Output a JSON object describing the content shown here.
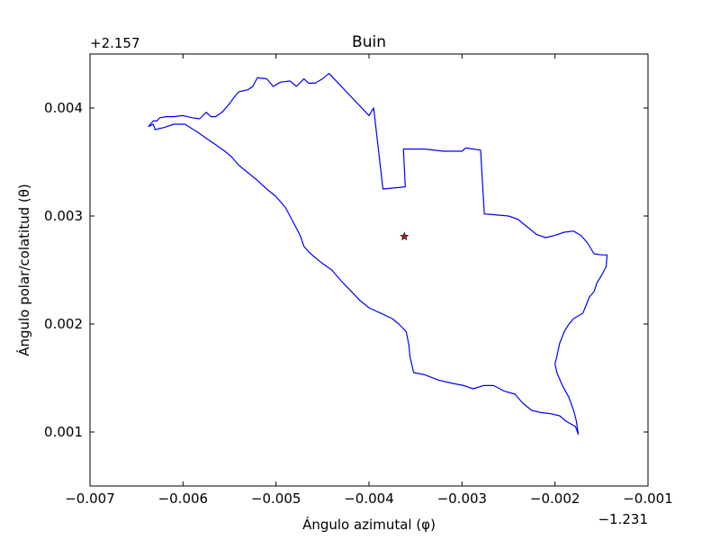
{
  "chart_data": {
    "type": "line",
    "title": "Buin",
    "xlabel": "Ángulo azimutal (φ)",
    "ylabel": "Ángulo polar/colatitud (θ)",
    "x_offset_label": "−1.231",
    "y_offset_label": "+2.157",
    "xlim": [
      -0.007,
      -0.001
    ],
    "ylim": [
      0.0045,
      0.0005
    ],
    "y_inverted": true,
    "xticks": [
      -0.007,
      -0.006,
      -0.005,
      -0.004,
      -0.003,
      -0.002,
      -0.001
    ],
    "xtick_labels": [
      "−0.007",
      "−0.006",
      "−0.005",
      "−0.004",
      "−0.003",
      "−0.002",
      "−0.001"
    ],
    "yticks": [
      0.001,
      0.002,
      0.003,
      0.004
    ],
    "ytick_labels": [
      "0.001",
      "0.002",
      "0.003",
      "0.004"
    ],
    "grid": false,
    "series": [
      {
        "color": "#0000ff",
        "closed": true,
        "points": [
          [
            -0.00175,
            0.00098
          ],
          [
            -0.00178,
            0.00105
          ],
          [
            -0.00188,
            0.0011
          ],
          [
            -0.00195,
            0.00115
          ],
          [
            -0.00205,
            0.00117
          ],
          [
            -0.00215,
            0.00118
          ],
          [
            -0.00225,
            0.0012
          ],
          [
            -0.00235,
            0.00127
          ],
          [
            -0.00243,
            0.00135
          ],
          [
            -0.00255,
            0.00138
          ],
          [
            -0.00266,
            0.00143
          ],
          [
            -0.00277,
            0.00143
          ],
          [
            -0.00288,
            0.0014
          ],
          [
            -0.00298,
            0.00143
          ],
          [
            -0.0031,
            0.00145
          ],
          [
            -0.00325,
            0.00148
          ],
          [
            -0.0034,
            0.00153
          ],
          [
            -0.00352,
            0.00155
          ],
          [
            -0.00356,
            0.0017
          ],
          [
            -0.00357,
            0.0018
          ],
          [
            -0.0036,
            0.00193
          ],
          [
            -0.00368,
            0.002
          ],
          [
            -0.00375,
            0.00205
          ],
          [
            -0.00385,
            0.00209
          ],
          [
            -0.004,
            0.00215
          ],
          [
            -0.0041,
            0.00222
          ],
          [
            -0.0042,
            0.00231
          ],
          [
            -0.0043,
            0.0024
          ],
          [
            -0.0044,
            0.0025
          ],
          [
            -0.0045,
            0.00256
          ],
          [
            -0.0046,
            0.00263
          ],
          [
            -0.00465,
            0.00267
          ],
          [
            -0.0047,
            0.00272
          ],
          [
            -0.00474,
            0.00282
          ],
          [
            -0.00477,
            0.00287
          ],
          [
            -0.0048,
            0.00292
          ],
          [
            -0.00485,
            0.003
          ],
          [
            -0.0049,
            0.00308
          ],
          [
            -0.005,
            0.00318
          ],
          [
            -0.0051,
            0.00325
          ],
          [
            -0.0052,
            0.00333
          ],
          [
            -0.0053,
            0.0034
          ],
          [
            -0.0054,
            0.00347
          ],
          [
            -0.00548,
            0.00355
          ],
          [
            -0.00555,
            0.0036
          ],
          [
            -0.00565,
            0.00366
          ],
          [
            -0.00575,
            0.00372
          ],
          [
            -0.00585,
            0.00378
          ],
          [
            -0.00598,
            0.00385
          ],
          [
            -0.0061,
            0.00385
          ],
          [
            -0.0062,
            0.00382
          ],
          [
            -0.0063,
            0.0038
          ],
          [
            -0.00632,
            0.00385
          ],
          [
            -0.00637,
            0.00383
          ],
          [
            -0.00632,
            0.00388
          ],
          [
            -0.00628,
            0.00388
          ],
          [
            -0.00625,
            0.00391
          ],
          [
            -0.00618,
            0.00392
          ],
          [
            -0.0061,
            0.00392
          ],
          [
            -0.006,
            0.00393
          ],
          [
            -0.0059,
            0.00391
          ],
          [
            -0.00582,
            0.0039
          ],
          [
            -0.00575,
            0.00396
          ],
          [
            -0.0057,
            0.00392
          ],
          [
            -0.00565,
            0.00392
          ],
          [
            -0.00558,
            0.00396
          ],
          [
            -0.0055,
            0.00404
          ],
          [
            -0.00545,
            0.0041
          ],
          [
            -0.0054,
            0.00415
          ],
          [
            -0.0053,
            0.00417
          ],
          [
            -0.00525,
            0.0042
          ],
          [
            -0.0052,
            0.00428
          ],
          [
            -0.0051,
            0.00427
          ],
          [
            -0.00503,
            0.0042
          ],
          [
            -0.00495,
            0.00424
          ],
          [
            -0.00485,
            0.00425
          ],
          [
            -0.00478,
            0.0042
          ],
          [
            -0.0047,
            0.00427
          ],
          [
            -0.00465,
            0.00423
          ],
          [
            -0.00458,
            0.00423
          ],
          [
            -0.0045,
            0.00427
          ],
          [
            -0.00443,
            0.00432
          ],
          [
            -0.004,
            0.00393
          ],
          [
            -0.00395,
            0.004
          ],
          [
            -0.00385,
            0.00325
          ],
          [
            -0.00361,
            0.00327
          ],
          [
            -0.00363,
            0.00362
          ],
          [
            -0.00355,
            0.00362
          ],
          [
            -0.0034,
            0.00362
          ],
          [
            -0.0032,
            0.0036
          ],
          [
            -0.003,
            0.0036
          ],
          [
            -0.00296,
            0.00363
          ],
          [
            -0.0028,
            0.00361
          ],
          [
            -0.00276,
            0.00302
          ],
          [
            -0.0025,
            0.003
          ],
          [
            -0.0024,
            0.00297
          ],
          [
            -0.0023,
            0.0029
          ],
          [
            -0.0022,
            0.00283
          ],
          [
            -0.0021,
            0.0028
          ],
          [
            -0.002,
            0.00282
          ],
          [
            -0.0019,
            0.00285
          ],
          [
            -0.0018,
            0.00286
          ],
          [
            -0.00172,
            0.00282
          ],
          [
            -0.00165,
            0.00275
          ],
          [
            -0.00158,
            0.00265
          ],
          [
            -0.0015,
            0.00264
          ],
          [
            -0.00144,
            0.00264
          ],
          [
            -0.00145,
            0.00253
          ],
          [
            -0.0015,
            0.00245
          ],
          [
            -0.00155,
            0.00238
          ],
          [
            -0.00158,
            0.0023
          ],
          [
            -0.00163,
            0.00225
          ],
          [
            -0.0017,
            0.0021
          ],
          [
            -0.0018,
            0.00205
          ],
          [
            -0.00185,
            0.002
          ],
          [
            -0.0019,
            0.00193
          ],
          [
            -0.00195,
            0.00182
          ],
          [
            -0.00198,
            0.0017
          ],
          [
            -0.002,
            0.00163
          ],
          [
            -0.00198,
            0.00155
          ],
          [
            -0.00192,
            0.00143
          ],
          [
            -0.00185,
            0.00132
          ],
          [
            -0.0018,
            0.0012
          ],
          [
            -0.00177,
            0.0011
          ],
          [
            -0.00175,
            0.00098
          ]
        ]
      }
    ],
    "marker": {
      "x": -0.00362,
      "y": 0.00281,
      "symbol": "star",
      "color": "#b22222"
    }
  }
}
